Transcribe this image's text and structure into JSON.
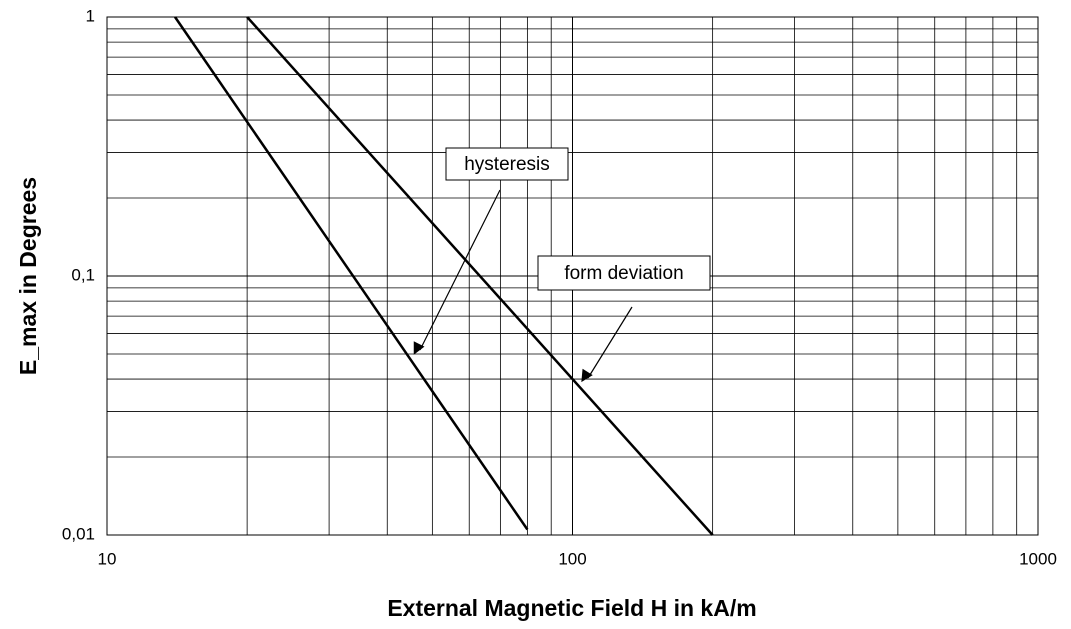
{
  "chart_data": {
    "type": "line",
    "x_label": "External Magnetic Field H in kA/m",
    "y_label": "E_max in Degrees",
    "series": [
      {
        "name": "hysteresis",
        "color": "#000000",
        "x": [
          14,
          80
        ],
        "values": [
          1,
          0.0105
        ]
      },
      {
        "name": "form deviation",
        "color": "#000000",
        "x": [
          20,
          200
        ],
        "values": [
          1,
          0.01
        ]
      }
    ],
    "xlim": [
      10,
      1000
    ],
    "xticks": [
      10,
      100,
      1000
    ],
    "ylim": [
      0.01,
      1
    ],
    "yticks": [
      1,
      {
        "value": 0.1,
        "label": "0,1"
      },
      {
        "value": 0.01,
        "label": "0,01"
      }
    ],
    "xscale": "log",
    "yscale": "log",
    "grid": true,
    "annotations": [
      {
        "text": "hysteresis"
      },
      {
        "text": "form deviation"
      }
    ]
  }
}
